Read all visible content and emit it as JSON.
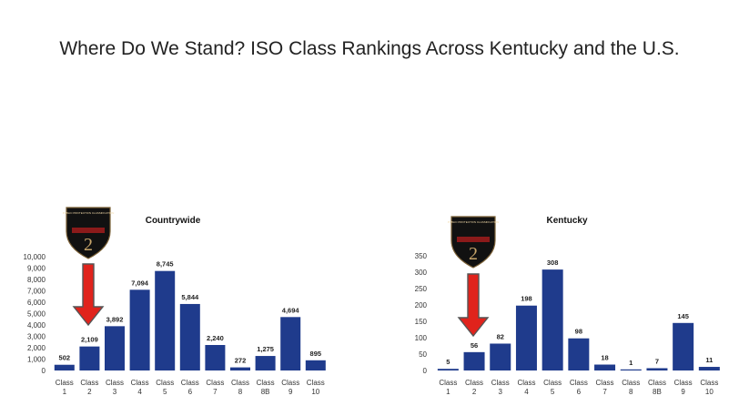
{
  "slide": {
    "title": "Where Do We Stand? ISO Class Rankings Across Kentucky and the U.S."
  },
  "badge": {
    "text": "PUBLIC PROTECTION CLASSIFICATION",
    "number": "2"
  },
  "colors": {
    "bar": "#1f3b8c",
    "arrow": "#e0231c",
    "badge": "#111111"
  },
  "chart_data": [
    {
      "type": "bar",
      "title": "Countrywide",
      "categories": [
        "Class 1",
        "Class 2",
        "Class 3",
        "Class 4",
        "Class 5",
        "Class 6",
        "Class 7",
        "Class 8",
        "Class 8B",
        "Class 9",
        "Class 10"
      ],
      "values": [
        502,
        2109,
        3892,
        7094,
        8745,
        5844,
        2240,
        272,
        1275,
        4694,
        895
      ],
      "value_labels": [
        "502",
        "2,109",
        "3,892",
        "7,094",
        "8,745",
        "5,844",
        "2,240",
        "272",
        "1,275",
        "4,694",
        "895"
      ],
      "ylim": [
        0,
        10000
      ],
      "yticks": [
        0,
        1000,
        2000,
        3000,
        4000,
        5000,
        6000,
        7000,
        8000,
        9000,
        10000
      ],
      "ytick_labels": [
        "0",
        "1,000",
        "2,000",
        "3,000",
        "4,000",
        "5,000",
        "6,000",
        "7,000",
        "8,000",
        "9,000",
        "10,000"
      ],
      "grid": false,
      "highlight": "Class 2"
    },
    {
      "type": "bar",
      "title": "Kentucky",
      "categories": [
        "Class 1",
        "Class 2",
        "Class 3",
        "Class 4",
        "Class 5",
        "Class 6",
        "Class 7",
        "Class 8",
        "Class 8B",
        "Class 9",
        "Class 10"
      ],
      "values": [
        5,
        56,
        82,
        198,
        308,
        98,
        18,
        1,
        7,
        145,
        11
      ],
      "value_labels": [
        "5",
        "56",
        "82",
        "198",
        "308",
        "98",
        "18",
        "1",
        "7",
        "145",
        "11"
      ],
      "ylim": [
        0,
        350
      ],
      "yticks": [
        0,
        50,
        100,
        150,
        200,
        250,
        300,
        350
      ],
      "ytick_labels": [
        "0",
        "50",
        "100",
        "150",
        "200",
        "250",
        "300",
        "350"
      ],
      "grid": false,
      "highlight": "Class 2"
    }
  ]
}
